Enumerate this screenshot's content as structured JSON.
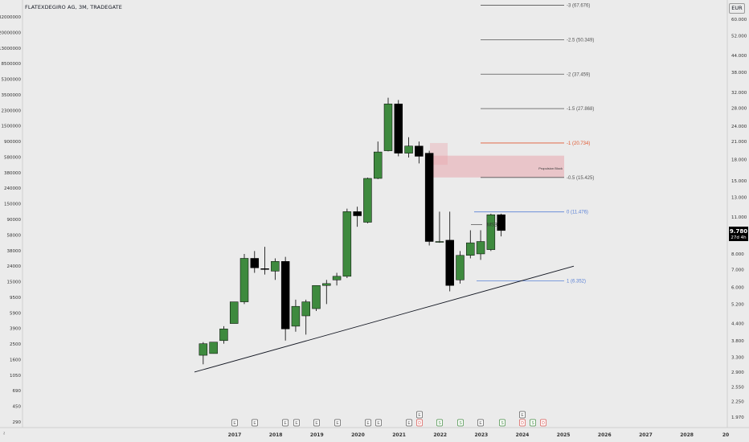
{
  "header": {
    "symbol": "FLATEXDEGIRO AG, 3M, TRADEGATE",
    "currency": "EUR"
  },
  "price_tag": {
    "price": "9.780",
    "countdown": "27d 4h"
  },
  "footer": {
    "settings_label": "≀"
  },
  "left_axis_labels": [
    "32000000",
    "20000000",
    "13000000",
    "8500000",
    "5300000",
    "3500000",
    "2300000",
    "1500000",
    "900000",
    "580000",
    "380000",
    "240000",
    "150000",
    "90000",
    "58000",
    "38000",
    "24000",
    "15000",
    "9500",
    "5900",
    "3900",
    "2500",
    "1600",
    "1050",
    "690",
    "450",
    "290"
  ],
  "time_axis_labels": [
    "2017",
    "2018",
    "2019",
    "2020",
    "2021",
    "2022",
    "2023",
    "2024",
    "2025",
    "2026",
    "2027",
    "2028",
    "20"
  ],
  "annotations": {
    "msb": "MSB",
    "block": "Propulsion Block"
  },
  "fib_labels": [
    "-3 (67.676)",
    "-2.5 (50.349)",
    "-2 (37.459)",
    "-1.5 (27.868)",
    "-1 (20.734)",
    "-0.5 (15.425)",
    "0 (11.476)",
    "1 (6.352)"
  ],
  "event_markers": [
    "E",
    "E",
    "E",
    "E",
    "E",
    "E",
    "E",
    "E",
    "E",
    "D",
    "E",
    "S",
    "S",
    "E",
    "S",
    "D",
    "E",
    "S",
    "D",
    "E"
  ],
  "chart_data": {
    "type": "candlestick",
    "title": "FLATEXDEGIRO AG, 3M, TRADEGATE",
    "scale": "log",
    "currency": "EUR",
    "ylim": [
      1.97,
      60.0
    ],
    "yticks": [
      60.0,
      52.0,
      44.0,
      38.0,
      32.0,
      28.0,
      24.0,
      21.0,
      18.0,
      15.0,
      13.0,
      11.0,
      9.78,
      8.0,
      7.0,
      6.0,
      5.2,
      4.4,
      3.8,
      3.3,
      2.9,
      2.55,
      2.25,
      1.97
    ],
    "x_labels": [
      "2017",
      "2018",
      "2019",
      "2020",
      "2021",
      "2022",
      "2023",
      "2024",
      "2025",
      "2026",
      "2027",
      "2028",
      "20"
    ],
    "candles": [
      {
        "o": 3.35,
        "h": 3.75,
        "l": 3.1,
        "c": 3.7
      },
      {
        "o": 3.4,
        "h": 3.75,
        "l": 3.4,
        "c": 3.75
      },
      {
        "o": 3.8,
        "h": 4.3,
        "l": 3.7,
        "c": 4.2
      },
      {
        "o": 4.4,
        "h": 5.3,
        "l": 4.4,
        "c": 5.3
      },
      {
        "o": 5.3,
        "h": 8.0,
        "l": 5.2,
        "c": 7.7
      },
      {
        "o": 7.7,
        "h": 8.2,
        "l": 6.8,
        "c": 7.1
      },
      {
        "o": 7.05,
        "h": 8.5,
        "l": 6.7,
        "c": 7.0
      },
      {
        "o": 6.9,
        "h": 7.7,
        "l": 6.4,
        "c": 7.5
      },
      {
        "o": 7.5,
        "h": 7.8,
        "l": 3.8,
        "c": 4.2
      },
      {
        "o": 4.3,
        "h": 5.4,
        "l": 4.1,
        "c": 5.1
      },
      {
        "o": 4.7,
        "h": 5.4,
        "l": 4.0,
        "c": 5.3
      },
      {
        "o": 5.0,
        "h": 6.1,
        "l": 4.9,
        "c": 6.1
      },
      {
        "o": 6.1,
        "h": 6.4,
        "l": 5.2,
        "c": 6.2
      },
      {
        "o": 6.4,
        "h": 6.8,
        "l": 6.1,
        "c": 6.6
      },
      {
        "o": 6.6,
        "h": 11.8,
        "l": 6.5,
        "c": 11.5
      },
      {
        "o": 11.5,
        "h": 12.0,
        "l": 10.1,
        "c": 11.1
      },
      {
        "o": 10.5,
        "h": 15.4,
        "l": 10.4,
        "c": 15.3
      },
      {
        "o": 15.3,
        "h": 21.0,
        "l": 15.2,
        "c": 19.2
      },
      {
        "o": 19.4,
        "h": 30.6,
        "l": 19.3,
        "c": 29.0
      },
      {
        "o": 29.0,
        "h": 30.0,
        "l": 18.5,
        "c": 19.0
      },
      {
        "o": 19.0,
        "h": 21.8,
        "l": 18.3,
        "c": 20.2
      },
      {
        "o": 20.2,
        "h": 21.0,
        "l": 17.4,
        "c": 18.5
      },
      {
        "o": 19.0,
        "h": 19.4,
        "l": 8.6,
        "c": 8.9
      },
      {
        "o": 8.9,
        "h": 11.5,
        "l": 8.8,
        "c": 8.9
      },
      {
        "o": 9.0,
        "h": 11.5,
        "l": 5.8,
        "c": 6.1
      },
      {
        "o": 6.4,
        "h": 8.2,
        "l": 6.2,
        "c": 7.9
      },
      {
        "o": 7.9,
        "h": 9.8,
        "l": 7.7,
        "c": 8.8
      },
      {
        "o": 8.0,
        "h": 9.8,
        "l": 7.6,
        "c": 8.9
      },
      {
        "o": 8.3,
        "h": 11.3,
        "l": 8.2,
        "c": 11.2
      },
      {
        "o": 11.2,
        "h": 11.3,
        "l": 9.3,
        "c": 9.78
      }
    ],
    "trendline": {
      "from": {
        "x": "2016-01",
        "y": 2.9
      },
      "to": {
        "x": "2025-01",
        "y": 7.2
      }
    },
    "fibonacci": [
      {
        "level": "-3",
        "value": 67.676
      },
      {
        "level": "-2.5",
        "value": 50.349
      },
      {
        "level": "-2",
        "value": 37.459
      },
      {
        "level": "-1.5",
        "value": 27.868
      },
      {
        "level": "-1",
        "value": 20.734
      },
      {
        "level": "-0.5",
        "value": 15.425
      },
      {
        "level": "0",
        "value": 11.476
      },
      {
        "level": "1",
        "value": 6.352
      }
    ],
    "zones": [
      {
        "name": "Propulsion Block",
        "from": 15.425,
        "to": 18.6
      },
      {
        "from": 17.2,
        "to": 20.734
      }
    ],
    "grid": false,
    "colors": {
      "bull": "#3e8a3e",
      "bear": "#000000",
      "fib_default": "#555555",
      "fib_highlight": "#e05a33",
      "fib_zero": "#5b82d6",
      "zone": "#e8a6ad",
      "trend": "#131722"
    }
  }
}
